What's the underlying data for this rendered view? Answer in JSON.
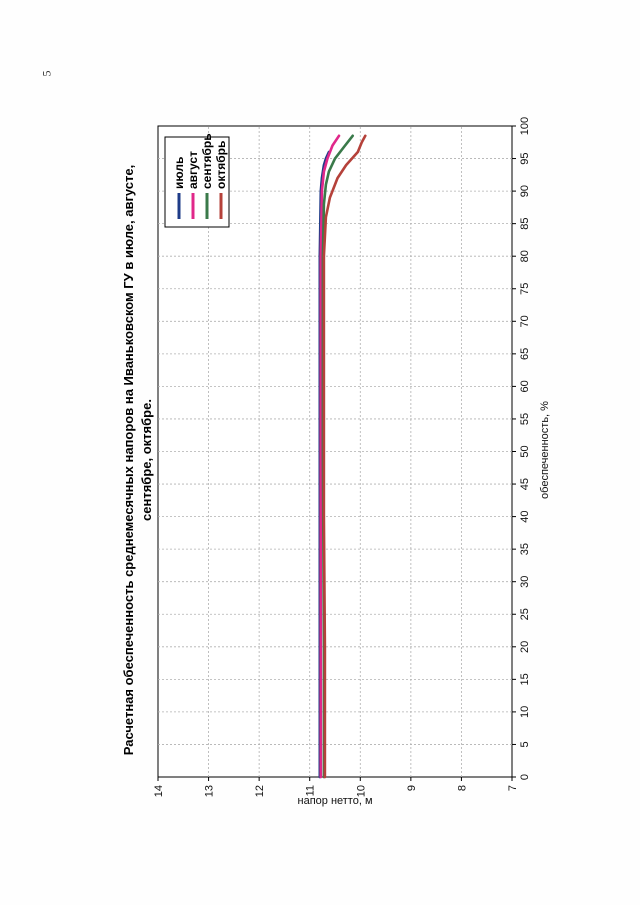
{
  "page": {
    "number": "5"
  },
  "chart_data": {
    "type": "line",
    "title_line1": "Расчетная обеспеченность среднемесячных напоров на Иваньковском ГУ в июле, августе,",
    "title_line2": "сентябре, октябре.",
    "xlabel": "обеспеченность, %",
    "ylabel": "напор нетто, м",
    "xlim": [
      0,
      100
    ],
    "ylim": [
      7,
      14
    ],
    "x_ticks": [
      "0",
      "5",
      "10",
      "15",
      "20",
      "25",
      "30",
      "35",
      "40",
      "45",
      "50",
      "55",
      "60",
      "65",
      "70",
      "75",
      "80",
      "85",
      "90",
      "95",
      "100"
    ],
    "y_ticks": [
      "7",
      "8",
      "9",
      "10",
      "11",
      "12",
      "13",
      "14"
    ],
    "grid": true,
    "legend_position": "top-right",
    "series": [
      {
        "name": "июль",
        "color": "#1f3c88",
        "x": [
          0,
          20,
          50,
          80,
          90,
          92,
          94,
          95,
          96
        ],
        "y": [
          10.8,
          10.8,
          10.8,
          10.8,
          10.78,
          10.76,
          10.72,
          10.68,
          10.62
        ]
      },
      {
        "name": "август",
        "color": "#e0288a",
        "x": [
          0,
          20,
          50,
          80,
          90,
          93,
          95,
          97,
          98.5
        ],
        "y": [
          10.78,
          10.78,
          10.78,
          10.78,
          10.76,
          10.72,
          10.65,
          10.55,
          10.42
        ]
      },
      {
        "name": "сентябрь",
        "color": "#3a7a4a",
        "x": [
          0,
          20,
          50,
          80,
          88,
          91,
          93,
          95,
          97,
          98.5
        ],
        "y": [
          10.72,
          10.72,
          10.74,
          10.74,
          10.72,
          10.68,
          10.62,
          10.5,
          10.3,
          10.15
        ]
      },
      {
        "name": "октябрь",
        "color": "#b5413a",
        "x": [
          0,
          20,
          40,
          60,
          80,
          86,
          89,
          92,
          94,
          96,
          97.5,
          98.5
        ],
        "y": [
          10.7,
          10.7,
          10.72,
          10.72,
          10.72,
          10.68,
          10.6,
          10.45,
          10.28,
          10.05,
          9.97,
          9.9
        ]
      }
    ]
  }
}
